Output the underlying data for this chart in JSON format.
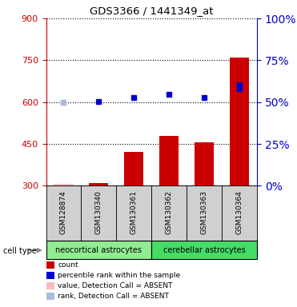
{
  "title": "GDS3366 / 1441349_at",
  "samples": [
    "GSM128874",
    "GSM130340",
    "GSM130361",
    "GSM130362",
    "GSM130363",
    "GSM130364"
  ],
  "cell_types": [
    {
      "label": "neocortical astrocytes",
      "indices": [
        0,
        1,
        2
      ],
      "color": "#90ee90"
    },
    {
      "label": "cerebellar astrocytes",
      "indices": [
        3,
        4,
        5
      ],
      "color": "#44dd66"
    }
  ],
  "bar_values": [
    307,
    310,
    420,
    480,
    455,
    760
  ],
  "bar_absent": [
    true,
    false,
    false,
    false,
    false,
    false
  ],
  "percentile_values": [
    600,
    603,
    617,
    627,
    617,
    648
  ],
  "percentile_absent": [
    true,
    false,
    false,
    false,
    false,
    false
  ],
  "extra_dot_index": 5,
  "extra_dot_value": 662,
  "rank_absent_index": 0,
  "rank_absent_value": 600,
  "ylim_left": [
    300,
    900
  ],
  "ylim_right": [
    0,
    100
  ],
  "yticks_left": [
    300,
    450,
    600,
    750,
    900
  ],
  "yticks_right": [
    0,
    25,
    50,
    75,
    100
  ],
  "bar_color_present": "#cc0000",
  "bar_color_absent": "#ffbbbb",
  "dot_color_present": "#0000cc",
  "dot_color_absent": "#aabbdd",
  "left_tick_color": "#cc0000",
  "right_tick_color": "#0000cc",
  "plot_bg_color": "#ffffff",
  "sample_box_color": "#d0d0d0",
  "legend_items": [
    {
      "label": "count",
      "color": "#cc0000"
    },
    {
      "label": "percentile rank within the sample",
      "color": "#0000cc"
    },
    {
      "label": "value, Detection Call = ABSENT",
      "color": "#ffbbbb"
    },
    {
      "label": "rank, Detection Call = ABSENT",
      "color": "#aabbdd"
    }
  ]
}
